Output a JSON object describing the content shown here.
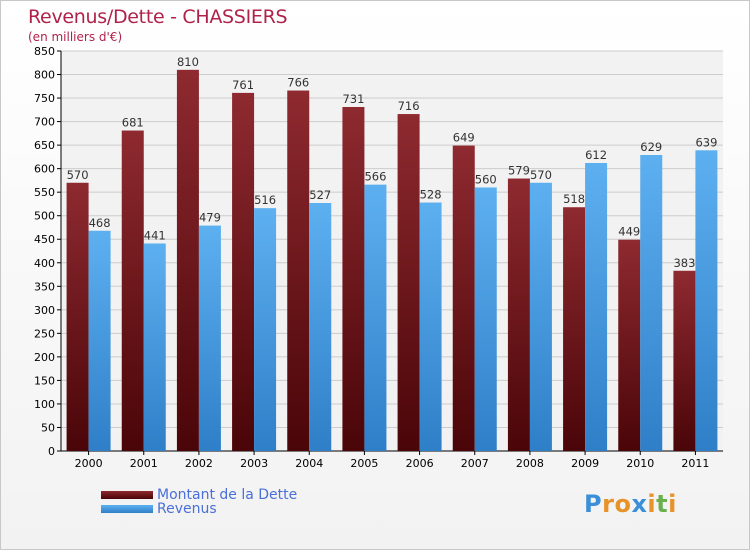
{
  "title": "Revenus/Dette - CHASSIERS",
  "subtitle": "(en milliers d'€)",
  "logo": {
    "text": "Proxiti",
    "letter_colors": [
      "#3a8fd8",
      "#e8922a",
      "#e8922a",
      "#3a8fd8",
      "#e8922a",
      "#6ab04c",
      "#e8922a"
    ]
  },
  "colors": {
    "dette": "#7d1a1f",
    "revenus": "#4aa3e8",
    "axis_text": "#000000",
    "grid": "#cccccc",
    "plot_bg": "#f2f2f2"
  },
  "chart_data": {
    "type": "bar",
    "categories": [
      "2000",
      "2001",
      "2002",
      "2003",
      "2004",
      "2005",
      "2006",
      "2007",
      "2008",
      "2009",
      "2010",
      "2011"
    ],
    "series": [
      {
        "name": "Montant de la Dette",
        "values": [
          570,
          681,
          810,
          761,
          766,
          731,
          716,
          649,
          579,
          518,
          449,
          383
        ]
      },
      {
        "name": "Revenus",
        "values": [
          468,
          441,
          479,
          516,
          527,
          566,
          528,
          560,
          570,
          612,
          629,
          639
        ]
      }
    ],
    "ylim": [
      0,
      850
    ],
    "ytick_step": 50,
    "grid": true,
    "data_labels": true,
    "legend_position": "bottom-left"
  }
}
